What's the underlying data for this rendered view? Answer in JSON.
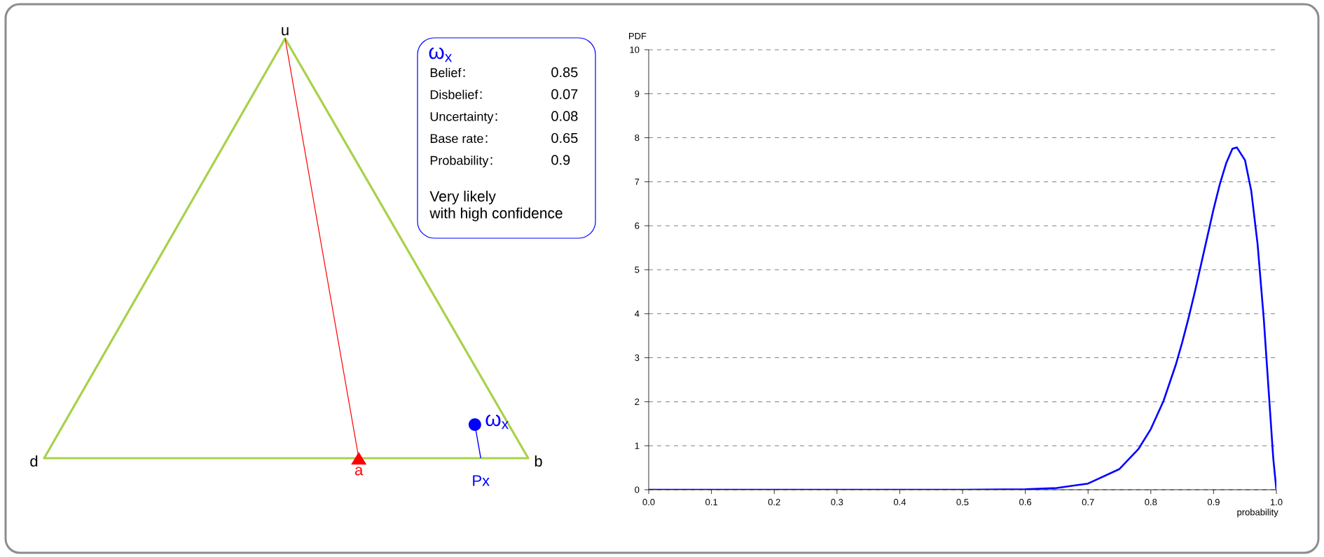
{
  "chart_data": [
    {
      "type": "other",
      "title": "ω$_{x}$",
      "categories": [
        "Belief",
        "Disbelief",
        "Uncertainty",
        "Base rate",
        "Probability"
      ],
      "values": [
        0.85,
        0.07,
        0.08,
        0.65,
        0.9
      ],
      "data_labels": true,
      "annotations": [
        "Very likely",
        "with high confidence",
        "u",
        "d",
        "b",
        "a",
        "Px",
        "ω$_{x}$"
      ]
    },
    {
      "type": "line",
      "xlabel": "probability",
      "ylabel": "PDF",
      "color": "#0000ff",
      "x": [
        0,
        0.1,
        0.2,
        0.3,
        0.4,
        0.5,
        0.6,
        0.65,
        0.7,
        0.75,
        0.78,
        0.8,
        0.82,
        0.84,
        0.85,
        0.86,
        0.87,
        0.88,
        0.89,
        0.9,
        0.91,
        0.92,
        0.93,
        0.937,
        0.95,
        0.96,
        0.97,
        0.98,
        0.99,
        0.995,
        1
      ],
      "values": [
        0,
        0,
        0,
        0,
        0,
        0,
        0.01,
        0.04,
        0.14,
        0.47,
        0.92,
        1.38,
        2.01,
        2.85,
        3.35,
        3.9,
        4.49,
        5.12,
        5.75,
        6.38,
        6.95,
        7.42,
        7.75,
        7.78,
        7.49,
        6.79,
        5.59,
        3.87,
        1.77,
        0.72,
        0
      ],
      "xlim": [
        0,
        1
      ],
      "ylim": [
        0,
        10
      ],
      "xticks": [
        {
          "value": 0,
          "label": "0.0"
        },
        {
          "value": 0.1,
          "label": "0.1"
        },
        {
          "value": 0.2,
          "label": "0.2"
        },
        {
          "value": 0.3,
          "label": "0.3"
        },
        {
          "value": 0.4,
          "label": "0.4"
        },
        {
          "value": 0.5,
          "label": "0.5"
        },
        {
          "value": 0.6,
          "label": "0.6"
        },
        {
          "value": 0.7,
          "label": "0.7"
        },
        {
          "value": 0.8,
          "label": "0.8"
        },
        {
          "value": 0.9,
          "label": "0.9"
        },
        {
          "value": 1,
          "label": "1.0"
        }
      ],
      "yticks": [
        0,
        1,
        2,
        3,
        4,
        5,
        6,
        7,
        8,
        9,
        10
      ],
      "grid": "y"
    }
  ]
}
